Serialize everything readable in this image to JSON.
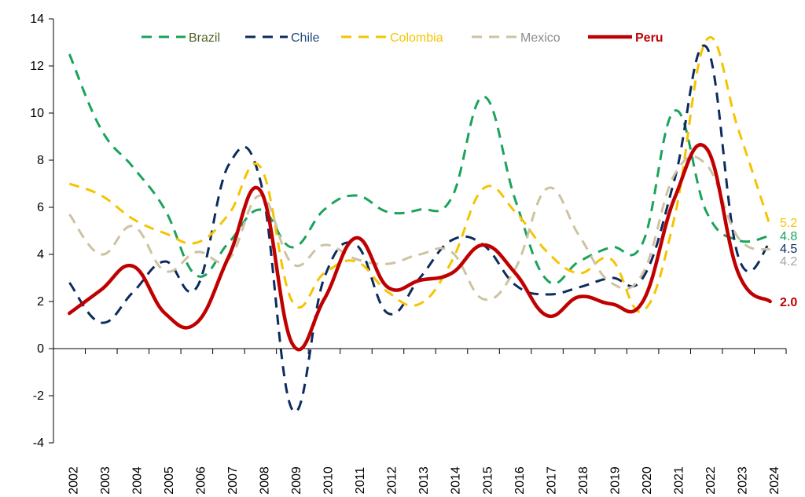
{
  "chart_data": {
    "type": "line",
    "title": "",
    "xlabel": "",
    "ylabel": "",
    "ylim": [
      -4,
      14
    ],
    "y_ticks": [
      "-4",
      "-2",
      "0",
      "2",
      "4",
      "6",
      "8",
      "10",
      "12",
      "14"
    ],
    "categories": [
      "2002",
      "2003",
      "2004",
      "2005",
      "2006",
      "2007",
      "2008",
      "2009",
      "2010",
      "2011",
      "2012",
      "2013",
      "2014",
      "2015",
      "2016",
      "2017",
      "2018",
      "2019",
      "2020",
      "2021",
      "2022",
      "2023",
      "2024"
    ],
    "legend_position": "top",
    "series": [
      {
        "name": "Brazil",
        "color": "#1aa35a",
        "label_color": "#4f6228",
        "dash": true,
        "end_label": "4.8",
        "values": [
          12.5,
          9.3,
          7.7,
          5.9,
          3.1,
          4.5,
          5.9,
          4.3,
          5.9,
          6.5,
          5.8,
          5.9,
          6.4,
          10.7,
          6.3,
          2.9,
          3.7,
          4.3,
          4.5,
          10.1,
          5.8,
          4.6,
          4.8
        ]
      },
      {
        "name": "Chile",
        "color": "#0d2b5e",
        "label_color": "#1f497d",
        "dash": true,
        "end_label": "4.5",
        "values": [
          2.8,
          1.1,
          2.4,
          3.7,
          2.6,
          7.8,
          7.1,
          -2.6,
          3.0,
          4.4,
          1.5,
          3.0,
          4.6,
          4.4,
          2.7,
          2.3,
          2.6,
          3.0,
          3.0,
          7.2,
          12.8,
          3.9,
          4.5
        ]
      },
      {
        "name": "Colombia",
        "color": "#f5c400",
        "label_color": "#f5c400",
        "dash": true,
        "end_label": "5.2",
        "values": [
          7.0,
          6.5,
          5.5,
          4.9,
          4.5,
          5.7,
          7.7,
          2.0,
          3.2,
          3.7,
          2.4,
          1.9,
          3.7,
          6.8,
          5.8,
          4.1,
          3.2,
          3.8,
          1.6,
          5.6,
          13.1,
          9.3,
          5.2
        ]
      },
      {
        "name": "Mexico",
        "color": "#cdc2a2",
        "label_color": "#8c8c8c",
        "dash": true,
        "end_label": "4.2",
        "values": [
          5.7,
          4.0,
          5.2,
          3.3,
          4.1,
          3.8,
          6.5,
          3.6,
          4.4,
          3.8,
          3.6,
          4.0,
          4.1,
          2.1,
          3.4,
          6.8,
          4.8,
          2.8,
          3.2,
          7.4,
          7.8,
          4.7,
          4.2
        ]
      },
      {
        "name": "Peru",
        "color": "#c00000",
        "label_color": "#c00000",
        "dash": false,
        "end_label": "2.0",
        "values": [
          1.5,
          2.5,
          3.5,
          1.5,
          1.1,
          3.9,
          6.7,
          0.2,
          2.1,
          4.7,
          2.6,
          2.9,
          3.2,
          4.4,
          3.2,
          1.4,
          2.2,
          1.9,
          2.0,
          6.4,
          8.5,
          3.2,
          2.0
        ]
      }
    ]
  }
}
